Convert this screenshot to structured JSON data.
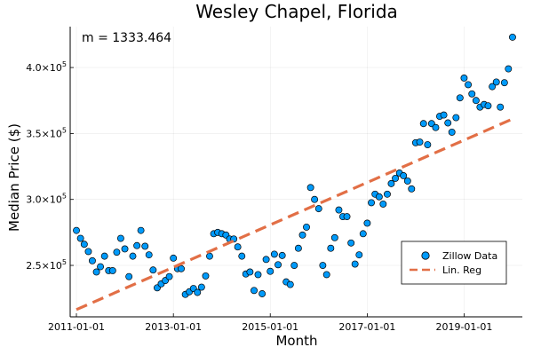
{
  "chart_data": {
    "type": "scatter",
    "title": "Wesley Chapel, Florida",
    "xlabel": "Month",
    "ylabel": "Median Price ($)",
    "annotation": "m = 1333.464",
    "x_ticks": [
      "2011-01-01",
      "2013-01-01",
      "2015-01-01",
      "2017-01-01",
      "2019-01-01"
    ],
    "y_ticks": [
      {
        "value": 250000,
        "mantissa": "2.5×10",
        "exp": "5"
      },
      {
        "value": 300000,
        "mantissa": "3.0×10",
        "exp": "5"
      },
      {
        "value": 350000,
        "mantissa": "3.5×10",
        "exp": "5"
      },
      {
        "value": 400000,
        "mantissa": "4.0×10",
        "exp": "5"
      }
    ],
    "xlim": [
      "2010-11-15",
      "2020-03-15"
    ],
    "ylim": [
      211000,
      431000
    ],
    "grid": true,
    "legend_position": "bottom-right",
    "colors": {
      "points": "#009AFA",
      "line": "#E26F46"
    },
    "series": [
      {
        "name": "Zillow Data",
        "type": "scatter",
        "points": [
          [
            "2011-01",
            276500
          ],
          [
            "2011-02",
            270500
          ],
          [
            "2011-03",
            266000
          ],
          [
            "2011-04",
            260500
          ],
          [
            "2011-05",
            253500
          ],
          [
            "2011-06",
            245000
          ],
          [
            "2011-07",
            249000
          ],
          [
            "2011-08",
            257000
          ],
          [
            "2011-09",
            246000
          ],
          [
            "2011-10",
            246000
          ],
          [
            "2011-11",
            260000
          ],
          [
            "2011-12",
            270500
          ],
          [
            "2012-01",
            262500
          ],
          [
            "2012-02",
            241500
          ],
          [
            "2012-03",
            257000
          ],
          [
            "2012-04",
            265000
          ],
          [
            "2012-05",
            276500
          ],
          [
            "2012-06",
            264500
          ],
          [
            "2012-07",
            258000
          ],
          [
            "2012-08",
            246500
          ],
          [
            "2012-09",
            233000
          ],
          [
            "2012-10",
            236000
          ],
          [
            "2012-11",
            238500
          ],
          [
            "2012-12",
            241500
          ],
          [
            "2013-01",
            255500
          ],
          [
            "2013-02",
            247500
          ],
          [
            "2013-03",
            247500
          ],
          [
            "2013-04",
            228000
          ],
          [
            "2013-05",
            230000
          ],
          [
            "2013-06",
            232500
          ],
          [
            "2013-07",
            229500
          ],
          [
            "2013-08",
            233500
          ],
          [
            "2013-09",
            242000
          ],
          [
            "2013-10",
            257000
          ],
          [
            "2013-11",
            274000
          ],
          [
            "2013-12",
            275000
          ],
          [
            "2014-01",
            274000
          ],
          [
            "2014-02",
            273000
          ],
          [
            "2014-03",
            270000
          ],
          [
            "2014-04",
            270000
          ],
          [
            "2014-05",
            264000
          ],
          [
            "2014-06",
            257000
          ],
          [
            "2014-07",
            243500
          ],
          [
            "2014-08",
            245000
          ],
          [
            "2014-09",
            231000
          ],
          [
            "2014-10",
            243000
          ],
          [
            "2014-11",
            228500
          ],
          [
            "2014-12",
            254500
          ],
          [
            "2015-01",
            245500
          ],
          [
            "2015-02",
            258500
          ],
          [
            "2015-03",
            250500
          ],
          [
            "2015-04",
            257500
          ],
          [
            "2015-05",
            237500
          ],
          [
            "2015-06",
            235500
          ],
          [
            "2015-07",
            250000
          ],
          [
            "2015-08",
            263000
          ],
          [
            "2015-09",
            273000
          ],
          [
            "2015-10",
            279000
          ],
          [
            "2015-11",
            309000
          ],
          [
            "2015-12",
            300000
          ],
          [
            "2016-01",
            293000
          ],
          [
            "2016-02",
            250000
          ],
          [
            "2016-03",
            243000
          ],
          [
            "2016-04",
            263000
          ],
          [
            "2016-05",
            271000
          ],
          [
            "2016-06",
            292000
          ],
          [
            "2016-07",
            287000
          ],
          [
            "2016-08",
            287000
          ],
          [
            "2016-09",
            267000
          ],
          [
            "2016-10",
            251000
          ],
          [
            "2016-11",
            258000
          ],
          [
            "2016-12",
            274000
          ],
          [
            "2017-01",
            282000
          ],
          [
            "2017-02",
            297500
          ],
          [
            "2017-03",
            304000
          ],
          [
            "2017-04",
            302000
          ],
          [
            "2017-05",
            296500
          ],
          [
            "2017-06",
            304000
          ],
          [
            "2017-07",
            312000
          ],
          [
            "2017-08",
            316000
          ],
          [
            "2017-09",
            320000
          ],
          [
            "2017-10",
            318000
          ],
          [
            "2017-11",
            314000
          ],
          [
            "2017-12",
            308000
          ],
          [
            "2018-01",
            343000
          ],
          [
            "2018-02",
            343500
          ],
          [
            "2018-03",
            357500
          ],
          [
            "2018-04",
            341500
          ],
          [
            "2018-05",
            357500
          ],
          [
            "2018-06",
            354500
          ],
          [
            "2018-07",
            363000
          ],
          [
            "2018-08",
            364000
          ],
          [
            "2018-09",
            358000
          ],
          [
            "2018-10",
            351000
          ],
          [
            "2018-11",
            362000
          ],
          [
            "2018-12",
            377000
          ],
          [
            "2019-01",
            392000
          ],
          [
            "2019-02",
            387000
          ],
          [
            "2019-03",
            380000
          ],
          [
            "2019-04",
            375000
          ],
          [
            "2019-05",
            370000
          ],
          [
            "2019-06",
            372000
          ],
          [
            "2019-07",
            371000
          ],
          [
            "2019-08",
            385500
          ],
          [
            "2019-09",
            389000
          ],
          [
            "2019-10",
            370000
          ],
          [
            "2019-11",
            388500
          ],
          [
            "2019-12",
            399000
          ],
          [
            "2020-01",
            423000
          ]
        ]
      },
      {
        "name": "Lin. Reg",
        "type": "line",
        "style": "dashed",
        "points": [
          [
            "2011-01",
            216500
          ],
          [
            "2020-01",
            361000
          ]
        ]
      }
    ]
  }
}
